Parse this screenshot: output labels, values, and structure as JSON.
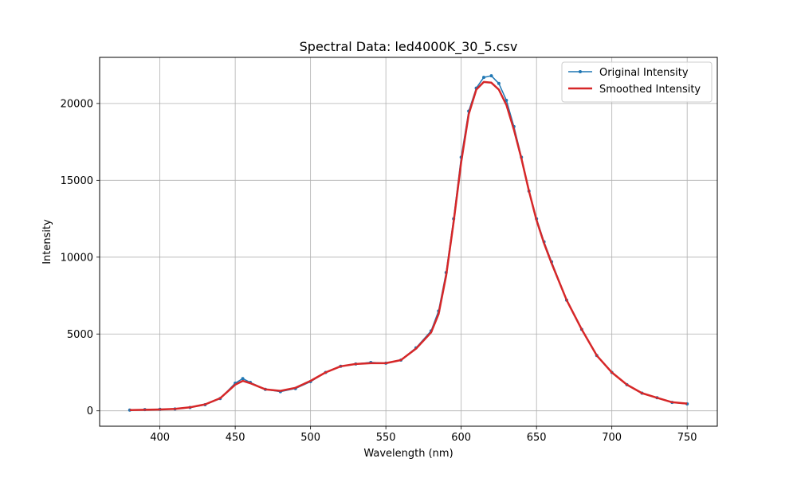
{
  "chart_data": {
    "type": "line",
    "title": "Spectral Data: led4000K_30_5.csv",
    "xlabel": "Wavelength (nm)",
    "ylabel": "Intensity",
    "xlim": [
      360,
      770
    ],
    "ylim": [
      -1000,
      23000
    ],
    "xticks": [
      400,
      450,
      500,
      550,
      600,
      650,
      700,
      750
    ],
    "yticks": [
      0,
      5000,
      10000,
      15000,
      20000
    ],
    "grid": true,
    "legend": "top-right",
    "x": [
      380,
      390,
      400,
      410,
      420,
      430,
      440,
      450,
      455,
      460,
      470,
      480,
      490,
      500,
      510,
      520,
      530,
      540,
      550,
      560,
      570,
      580,
      585,
      590,
      595,
      600,
      605,
      610,
      615,
      620,
      625,
      630,
      635,
      640,
      645,
      650,
      655,
      660,
      670,
      680,
      690,
      700,
      710,
      720,
      730,
      740,
      750
    ],
    "series": [
      {
        "name": "Original Intensity",
        "color": "#1f77b4",
        "style": "line-with-dots",
        "values": [
          50,
          80,
          100,
          120,
          220,
          400,
          800,
          1800,
          2100,
          1850,
          1400,
          1250,
          1450,
          1900,
          2500,
          2900,
          3050,
          3150,
          3100,
          3300,
          4100,
          5200,
          6500,
          9000,
          12500,
          16500,
          19500,
          21000,
          21700,
          21800,
          21300,
          20200,
          18500,
          16500,
          14300,
          12500,
          11000,
          9700,
          7200,
          5300,
          3600,
          2500,
          1700,
          1150,
          850,
          550,
          450
        ]
      },
      {
        "name": "Smoothed Intensity",
        "color": "#d62728",
        "style": "line",
        "values": [
          50,
          70,
          90,
          130,
          230,
          420,
          820,
          1700,
          1950,
          1800,
          1400,
          1300,
          1500,
          1950,
          2500,
          2900,
          3050,
          3100,
          3100,
          3300,
          4050,
          5100,
          6300,
          8800,
          12300,
          16200,
          19300,
          20900,
          21400,
          21350,
          20900,
          19900,
          18300,
          16400,
          14300,
          12400,
          10900,
          9600,
          7200,
          5300,
          3600,
          2500,
          1700,
          1150,
          850,
          560,
          470
        ]
      }
    ]
  }
}
